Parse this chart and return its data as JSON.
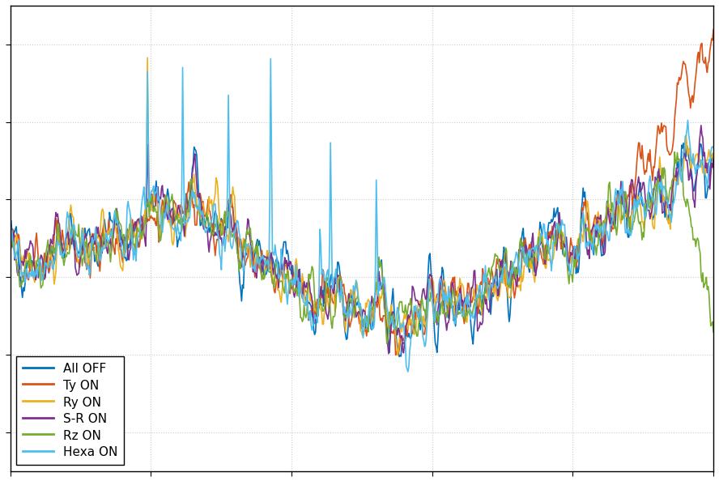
{
  "title": "",
  "xlabel": "",
  "ylabel": "",
  "background_color": "#ffffff",
  "grid_color": "#cccccc",
  "legend_labels": [
    "All OFF",
    "Ty ON",
    "Ry ON",
    "S-R ON",
    "Rz ON",
    "Hexa ON"
  ],
  "line_colors": [
    "#0072bd",
    "#d95319",
    "#edb120",
    "#7e2f8e",
    "#77ac30",
    "#4dbeee"
  ],
  "line_widths": [
    1.2,
    1.2,
    1.2,
    1.2,
    1.2,
    1.2
  ],
  "n_points": 800,
  "seed": 42,
  "figsize": [
    8.88,
    5.94
  ],
  "dpi": 100
}
